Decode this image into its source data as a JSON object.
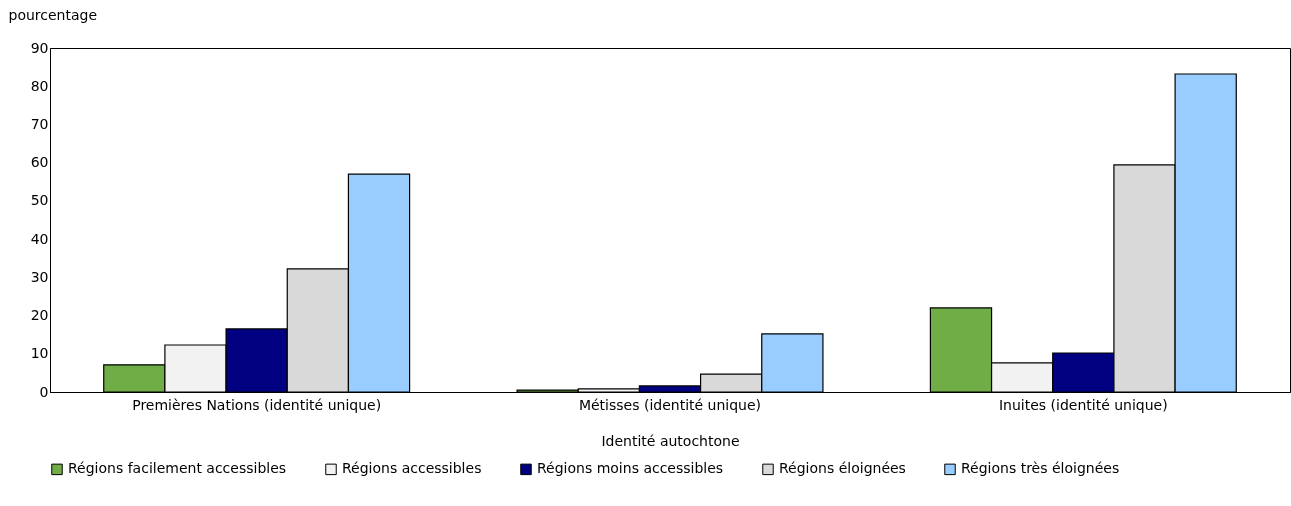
{
  "chart_data": {
    "type": "bar",
    "xlabel": "Identité autochtone",
    "ylabel": "pourcentage",
    "categories": [
      "Premières Nations (identité unique)",
      "Métisses (identité unique)",
      "Inuites (identité unique)"
    ],
    "series": [
      {
        "name": "Régions facilement accessibles",
        "color": "#70ad47",
        "values": [
          7.1,
          0.5,
          22.0
        ]
      },
      {
        "name": "Régions accessibles",
        "color": "#f2f2f2",
        "values": [
          12.3,
          0.8,
          7.6
        ]
      },
      {
        "name": "Régions moins accessibles",
        "color": "#000080",
        "values": [
          16.5,
          1.6,
          10.2
        ]
      },
      {
        "name": "Régions éloignées",
        "color": "#d9d9d9",
        "values": [
          32.2,
          4.7,
          59.4
        ]
      },
      {
        "name": "Régions très éloignées",
        "color": "#99ccff",
        "values": [
          57.0,
          15.2,
          83.2
        ]
      }
    ],
    "ylim": [
      0,
      90
    ],
    "yticks": [
      0,
      10,
      20,
      30,
      40,
      50,
      60,
      70,
      80,
      90
    ],
    "grid": false,
    "legend": "bottom"
  }
}
